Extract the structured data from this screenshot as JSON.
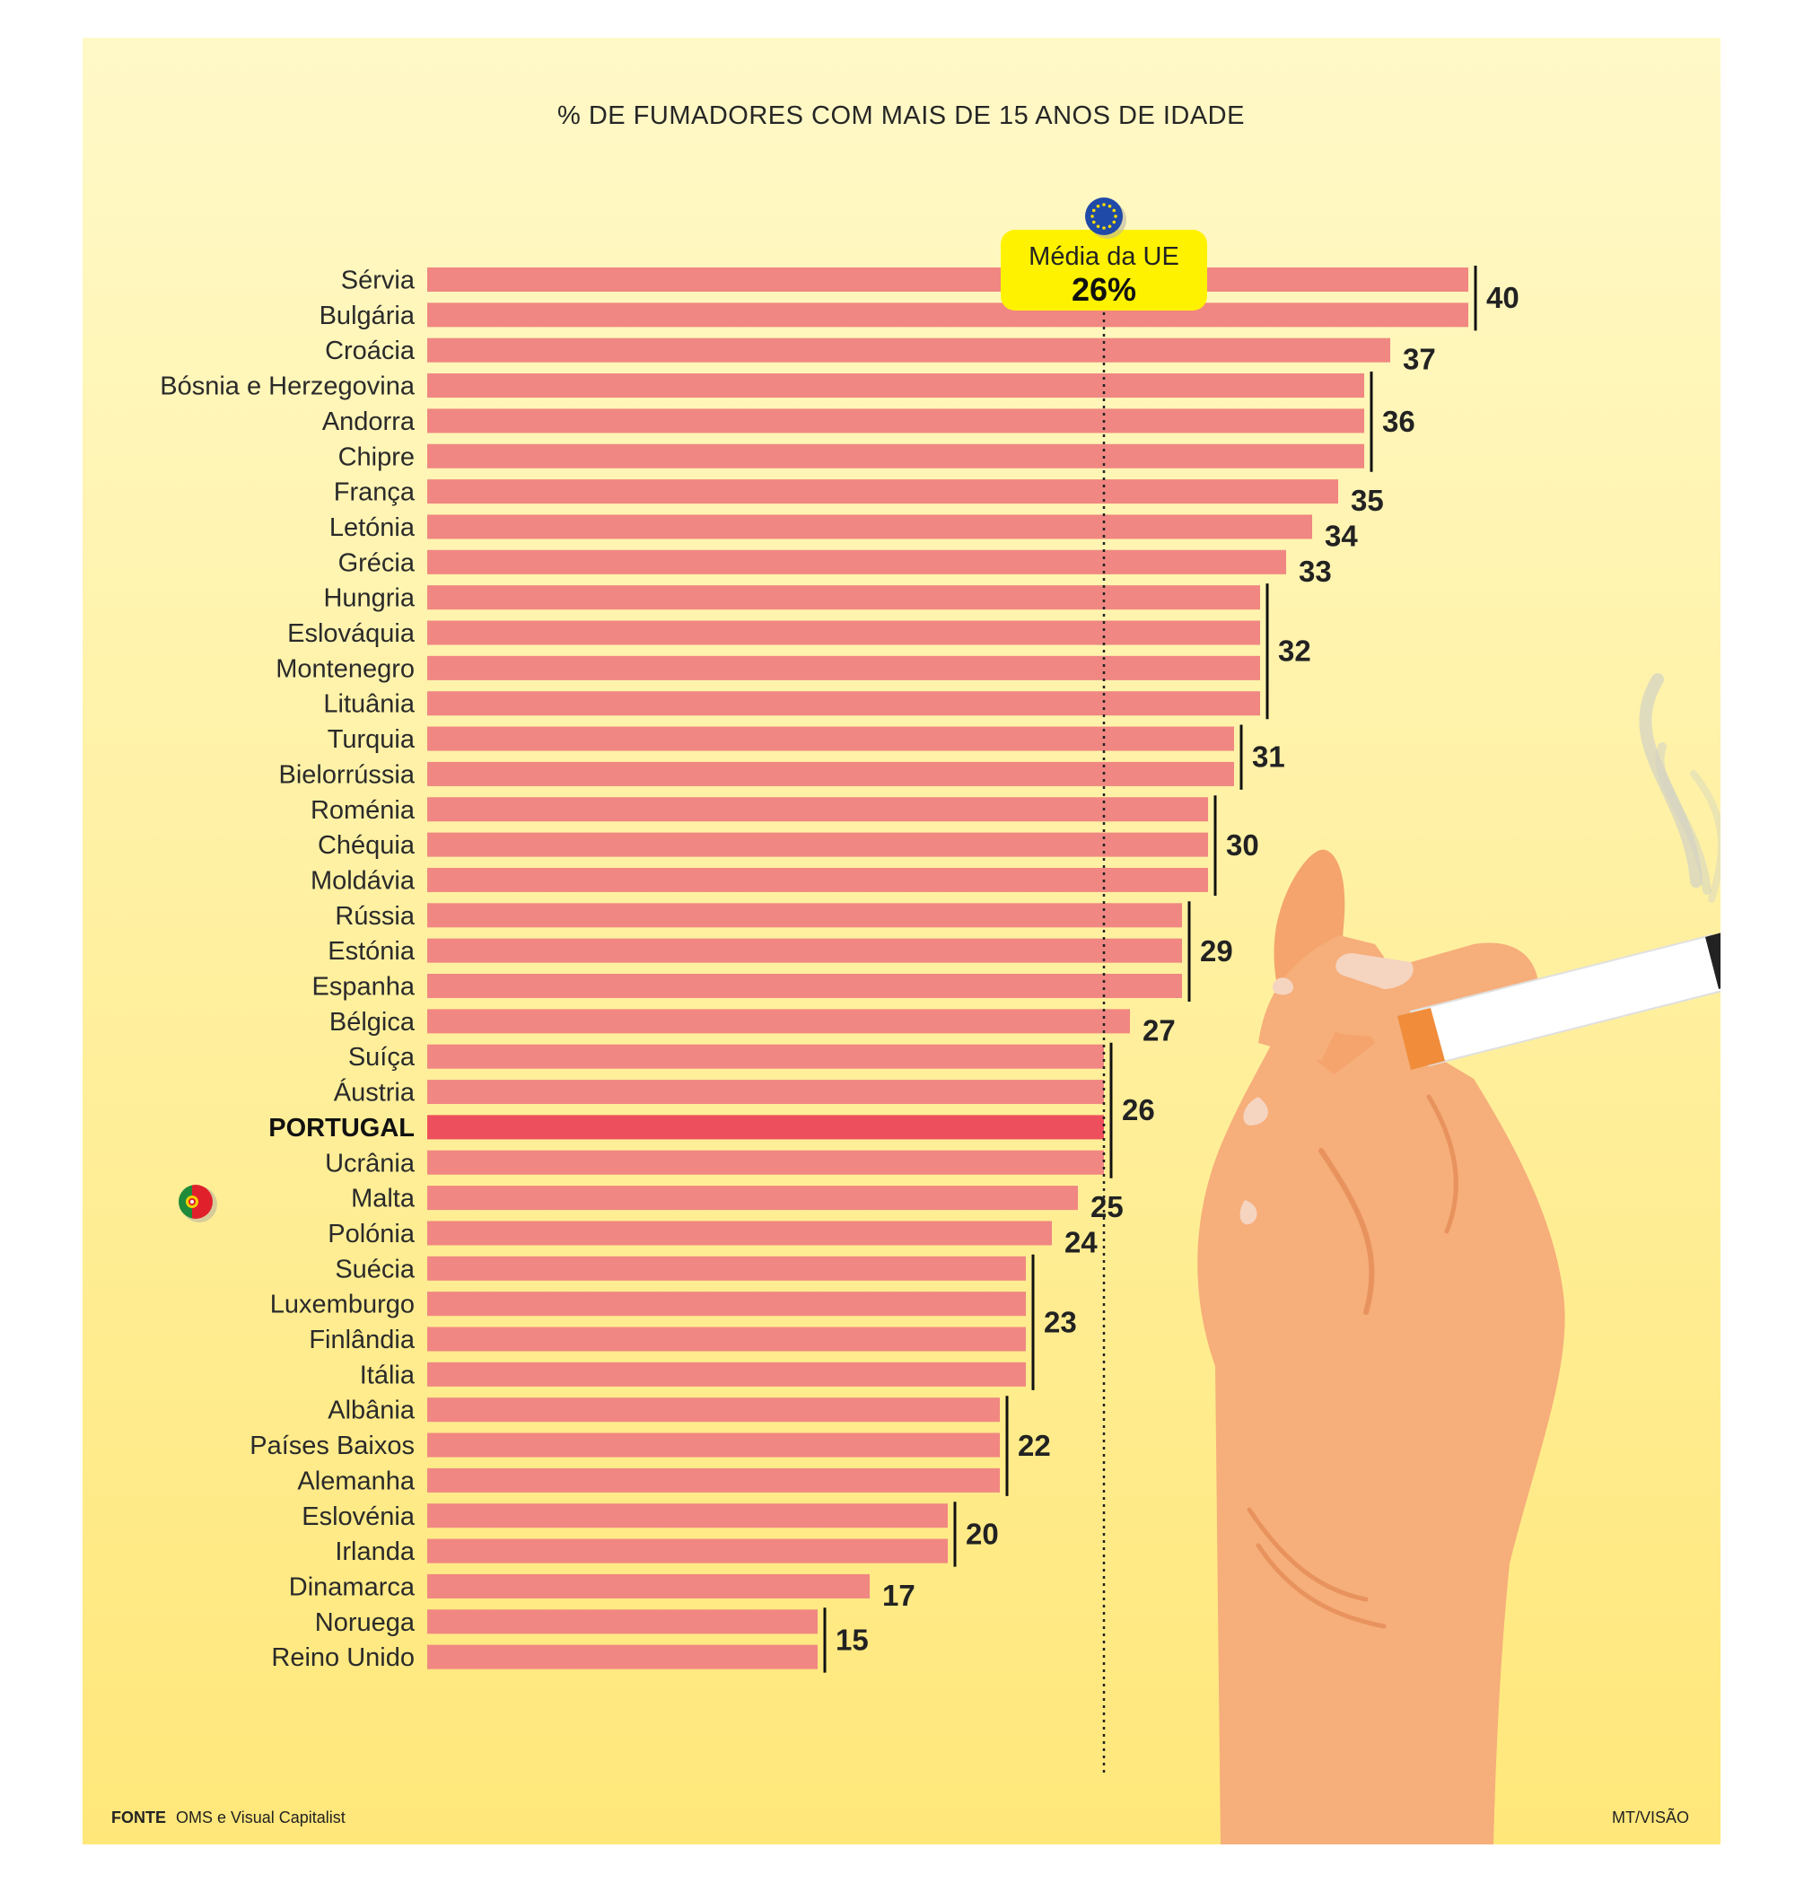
{
  "chart_data": {
    "type": "bar",
    "orientation": "horizontal",
    "title": "% DE FUMADORES COM MAIS DE 15 ANOS DE IDADE",
    "categories": [
      "Sérvia",
      "Bulgária",
      "Croácia",
      "Bósnia e Herzegovina",
      "Andorra",
      "Chipre",
      "França",
      "Letónia",
      "Grécia",
      "Hungria",
      "Eslováquia",
      "Montenegro",
      "Lituânia",
      "Turquia",
      "Bielorrússia",
      "Roménia",
      "Chéquia",
      "Moldávia",
      "Rússia",
      "Estónia",
      "Espanha",
      "Bélgica",
      "Suíça",
      "Áustria",
      "PORTUGAL",
      "Ucrânia",
      "Malta",
      "Polónia",
      "Suécia",
      "Luxemburgo",
      "Finlândia",
      "Itália",
      "Albânia",
      "Países Baixos",
      "Alemanha",
      "Eslovénia",
      "Irlanda",
      "Dinamarca",
      "Noruega",
      "Reino Unido"
    ],
    "values": [
      40,
      40,
      37,
      36,
      36,
      36,
      35,
      34,
      33,
      32,
      32,
      32,
      32,
      31,
      31,
      30,
      30,
      30,
      29,
      29,
      29,
      27,
      26,
      26,
      26,
      26,
      25,
      24,
      23,
      23,
      23,
      23,
      22,
      22,
      22,
      20,
      20,
      17,
      15,
      15
    ],
    "groups": [
      {
        "label": "40",
        "first": 0,
        "last": 1
      },
      {
        "label": "37",
        "first": 2,
        "last": 2
      },
      {
        "label": "36",
        "first": 3,
        "last": 5
      },
      {
        "label": "35",
        "first": 6,
        "last": 6
      },
      {
        "label": "34",
        "first": 7,
        "last": 7
      },
      {
        "label": "33",
        "first": 8,
        "last": 8
      },
      {
        "label": "32",
        "first": 9,
        "last": 12
      },
      {
        "label": "31",
        "first": 13,
        "last": 14
      },
      {
        "label": "30",
        "first": 15,
        "last": 17
      },
      {
        "label": "29",
        "first": 18,
        "last": 20
      },
      {
        "label": "27",
        "first": 21,
        "last": 21
      },
      {
        "label": "26",
        "first": 22,
        "last": 25
      },
      {
        "label": "25",
        "first": 26,
        "last": 26
      },
      {
        "label": "24",
        "first": 27,
        "last": 27
      },
      {
        "label": "23",
        "first": 28,
        "last": 31
      },
      {
        "label": "22",
        "first": 32,
        "last": 34
      },
      {
        "label": "20",
        "first": 35,
        "last": 36
      },
      {
        "label": "17",
        "first": 37,
        "last": 37
      },
      {
        "label": "15",
        "first": 38,
        "last": 39
      }
    ],
    "highlight_category": "PORTUGAL",
    "reference_line": {
      "value": 26,
      "label": "Média da UE",
      "value_label": "26%"
    },
    "xlim": [
      0,
      40
    ],
    "grid": false,
    "legend": "none"
  },
  "colors": {
    "bar": "#f08782",
    "bar_highlight": "#ee4f5c",
    "avg_box": "#fff200",
    "background_top": "#fff9c8",
    "background_bottom": "#ffe77a",
    "hand": "#f6ae7a"
  },
  "icons": {
    "eu_flag": "eu-flag-icon",
    "portugal_flag": "portugal-flag-icon",
    "illustration": "hand-holding-cigarette"
  },
  "footer": {
    "source_label": "FONTE",
    "source_text": "OMS e Visual Capitalist",
    "credit": "MT/VISÃO"
  }
}
